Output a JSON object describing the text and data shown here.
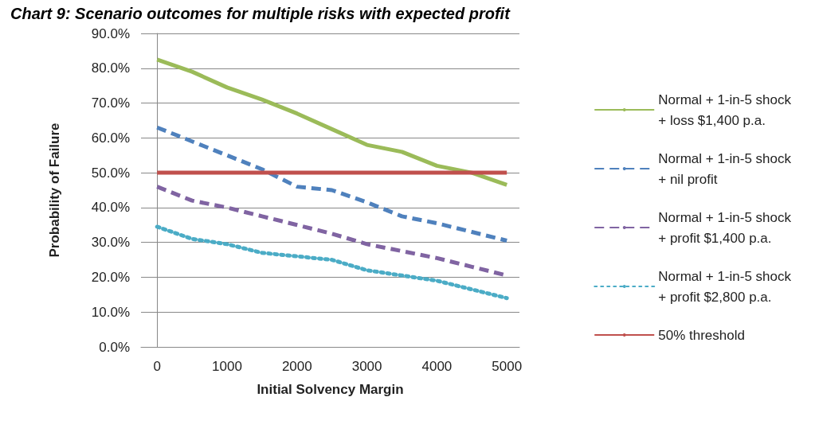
{
  "chart_data": {
    "type": "line",
    "title": "Chart 9: Scenario outcomes for multiple risks with expected profit",
    "xlabel": "Initial Solvency Margin",
    "ylabel": "Probability of Failure",
    "x": [
      0,
      500,
      1000,
      1500,
      2000,
      2500,
      3000,
      3500,
      4000,
      4500,
      5000
    ],
    "xlim": [
      -230,
      5180
    ],
    "xticks": [
      0,
      1000,
      2000,
      3000,
      4000,
      5000
    ],
    "ylim": [
      0,
      90
    ],
    "yticks": [
      {
        "value": 0,
        "label": "0.0%"
      },
      {
        "value": 10,
        "label": "10.0%"
      },
      {
        "value": 20,
        "label": "20.0%"
      },
      {
        "value": 30,
        "label": "30.0%"
      },
      {
        "value": 40,
        "label": "40.0%"
      },
      {
        "value": 50,
        "label": "50.0%"
      },
      {
        "value": 60,
        "label": "60.0%"
      },
      {
        "value": 70,
        "label": "70.0%"
      },
      {
        "value": 80,
        "label": "80.0%"
      },
      {
        "value": 90,
        "label": "90.0%"
      }
    ],
    "grid": "y",
    "legend": "right",
    "marker": "none",
    "series": [
      {
        "name": "Normal + 1-in-5 shock\n+ loss $1,400 p.a.",
        "color": "#9bbb59",
        "line_style": "solid",
        "values": [
          82.5,
          79,
          74.5,
          71,
          67,
          62.5,
          58,
          56,
          52,
          50,
          46.5
        ]
      },
      {
        "name": "Normal + 1-in-5 shock\n+ nil profit",
        "color": "#4f81bd",
        "line_style": "dashed",
        "values": [
          63,
          59,
          55,
          51,
          46,
          45,
          41.5,
          37.5,
          35.5,
          33,
          30.5
        ]
      },
      {
        "name": "Normal + 1-in-5 shock\n+ profit $1,400 p.a.",
        "color": "#8064a2",
        "line_style": "dashed",
        "values": [
          46,
          42,
          40,
          37.5,
          35,
          32.5,
          29.5,
          27.5,
          25.5,
          23,
          20.5
        ]
      },
      {
        "name": "Normal + 1-in-5 shock\n+ profit $2,800 p.a.",
        "color": "#4bacc6",
        "line_style": "dotted",
        "values": [
          34.5,
          31,
          29.5,
          27,
          26,
          25,
          22,
          20.5,
          19,
          16.5,
          14
        ]
      },
      {
        "name": "50% threshold",
        "color": "#c0504d",
        "line_style": "solid",
        "values": [
          50,
          50,
          50,
          50,
          50,
          50,
          50,
          50,
          50,
          50,
          50
        ]
      }
    ]
  }
}
